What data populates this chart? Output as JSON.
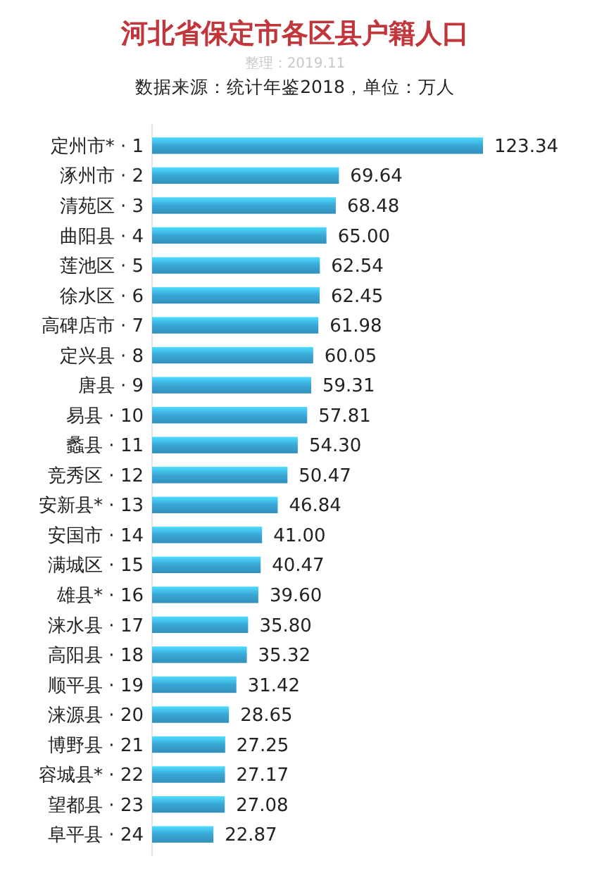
{
  "chart_data": {
    "type": "bar",
    "orientation": "horizontal",
    "title": "河北省保定市各区县户籍人口",
    "subtitle": "整理：2019.11",
    "annotations": [
      "数据来源：统计年鉴2018，单位：万人"
    ],
    "categories": [
      "定州市* · 1",
      "涿州市 · 2",
      "清苑区 · 3",
      "曲阳县 · 4",
      "莲池区 · 5",
      "徐水区 · 6",
      "高碑店市 · 7",
      "定兴县 · 8",
      "唐县 · 9",
      "易县 · 10",
      "蠡县 · 11",
      "竞秀区 · 12",
      "安新县* · 13",
      "安国市 · 14",
      "满城区 · 15",
      "雄县* · 16",
      "涞水县 · 17",
      "高阳县 · 18",
      "顺平县 · 19",
      "涞源县 · 20",
      "博野县 · 21",
      "容城县* · 22",
      "望都县 · 23",
      "阜平县 · 24"
    ],
    "values": [
      123.34,
      69.64,
      68.48,
      65.0,
      62.54,
      62.45,
      61.98,
      60.05,
      59.31,
      57.81,
      54.3,
      50.47,
      46.84,
      41.0,
      40.47,
      39.6,
      35.8,
      35.32,
      31.42,
      28.65,
      27.25,
      27.17,
      27.08,
      22.87
    ],
    "value_labels": [
      "123.34",
      "69.64",
      "68.48",
      "65.00",
      "62.54",
      "62.45",
      "61.98",
      "60.05",
      "59.31",
      "57.81",
      "54.30",
      "50.47",
      "46.84",
      "41.00",
      "40.47",
      "39.60",
      "35.80",
      "35.32",
      "31.42",
      "28.65",
      "27.25",
      "27.17",
      "27.08",
      "22.87"
    ],
    "color": "#3aa6d6",
    "relative": false
  }
}
